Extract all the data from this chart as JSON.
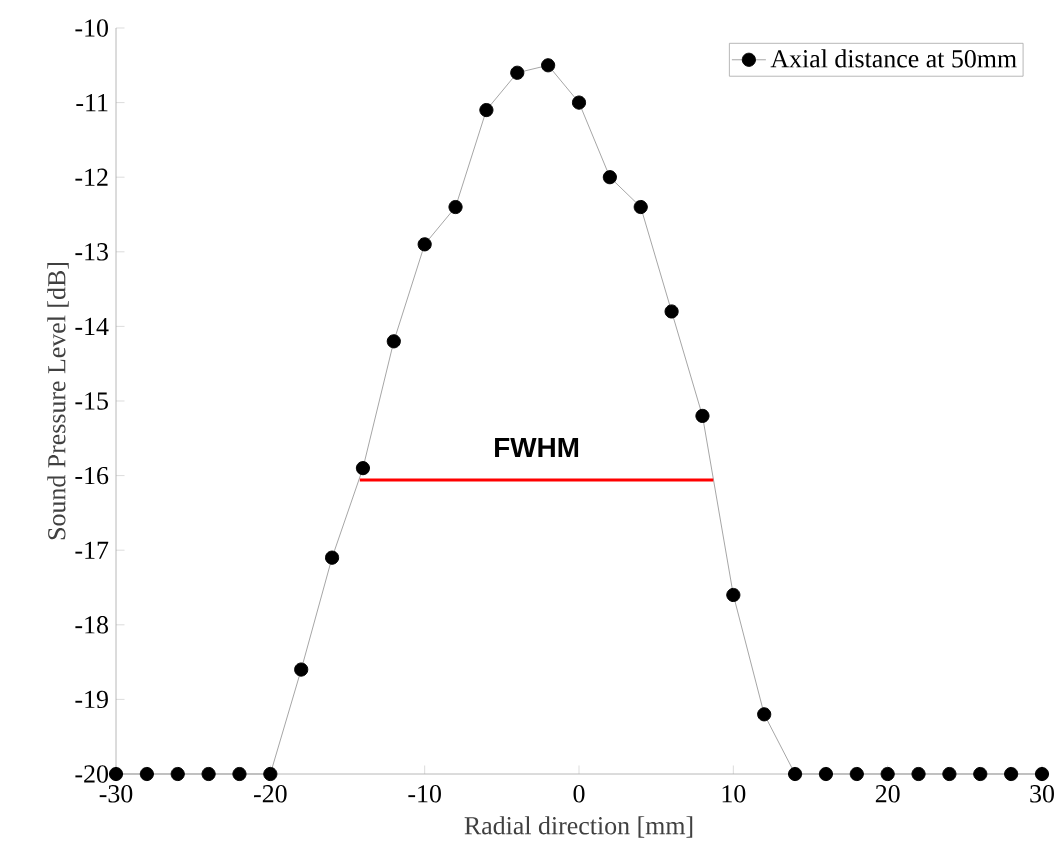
{
  "chart_data": {
    "type": "line",
    "xlabel": "Radial direction [mm]",
    "ylabel": "Sound Pressure Level [dB]",
    "xlim": [
      -30,
      30
    ],
    "ylim": [
      -20,
      -10
    ],
    "xticks": [
      -30,
      -20,
      -10,
      0,
      10,
      20,
      30
    ],
    "yticks": [
      -20,
      -19,
      -18,
      -17,
      -16,
      -15,
      -14,
      -13,
      -12,
      -11,
      -10
    ],
    "grid": false,
    "legend": "top right",
    "marker": "circle",
    "line_style": "solid",
    "series": [
      {
        "name": "Axial distance at 50mm",
        "color": "#000000",
        "x": [
          -30,
          -28,
          -26,
          -24,
          -22,
          -20,
          -18,
          -16,
          -14,
          -12,
          -10,
          -8,
          -6,
          -4,
          -2,
          0,
          2,
          4,
          6,
          8,
          10,
          12,
          14,
          16,
          18,
          20,
          22,
          24,
          26,
          28,
          30
        ],
        "values": [
          -20,
          -20,
          -20,
          -20,
          -20,
          -20,
          -18.6,
          -17.1,
          -15.9,
          -14.2,
          -12.9,
          -12.4,
          -11.1,
          -10.6,
          -10.5,
          -11.0,
          -12.0,
          -12.4,
          -13.8,
          -15.2,
          -17.6,
          -19.2,
          -20,
          -20,
          -20,
          -20,
          -20,
          -20,
          -20,
          -20,
          -20
        ]
      },
      {
        "color": "#ff0000",
        "marker": "none",
        "x": [
          -14.2,
          8.7
        ],
        "values": [
          -16.06,
          -16.06
        ]
      }
    ],
    "annotations": [
      "FWHM"
    ]
  }
}
